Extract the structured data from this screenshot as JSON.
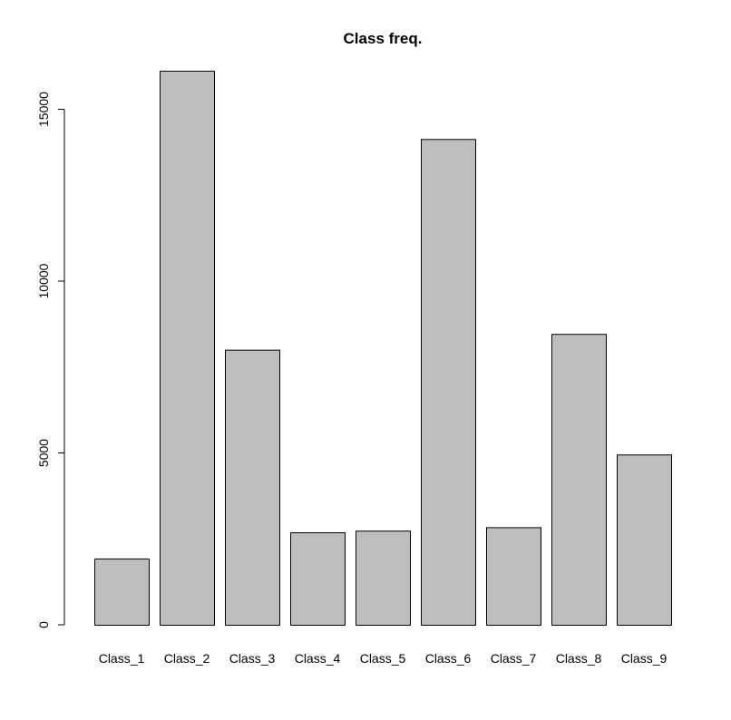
{
  "chart_data": {
    "type": "bar",
    "title": "Class freq.",
    "xlabel": "",
    "ylabel": "",
    "categories": [
      "Class_1",
      "Class_2",
      "Class_3",
      "Class_4",
      "Class_5",
      "Class_6",
      "Class_7",
      "Class_8",
      "Class_9"
    ],
    "values": [
      1929,
      16122,
      8004,
      2691,
      2739,
      14135,
      2839,
      8464,
      4955
    ],
    "ylim": [
      0,
      16122
    ],
    "yticks": [
      0,
      5000,
      10000,
      15000
    ],
    "grid": false,
    "legend": "none",
    "bar_color": "#bebebe"
  }
}
